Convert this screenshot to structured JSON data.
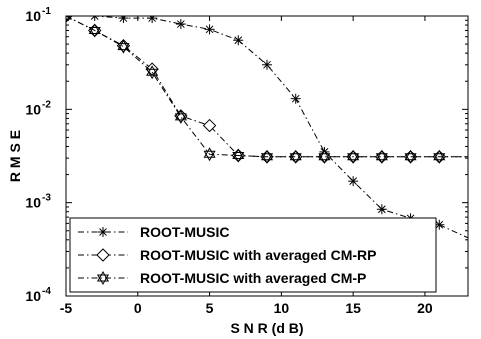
{
  "chart_data": {
    "type": "line",
    "xlabel": "S N R (d B)",
    "ylabel": "R M S E",
    "xlim": [
      -5,
      23
    ],
    "ylim": [
      0.0001,
      0.1
    ],
    "yscale": "log",
    "grid": false,
    "legend_position": "bottom-left",
    "x_ticks": [
      -5,
      0,
      5,
      10,
      15,
      20
    ],
    "x_tick_labels": [
      "-5",
      "0",
      "5",
      "10",
      "15",
      "20"
    ],
    "y_ticks": [
      0.1,
      0.01,
      0.001,
      0.0001
    ],
    "y_tick_labels": [
      {
        "base": "10",
        "exp": "-1"
      },
      {
        "base": "10",
        "exp": "-2"
      },
      {
        "base": "10",
        "exp": "-3"
      },
      {
        "base": "10",
        "exp": "-4"
      }
    ],
    "series": [
      {
        "name": "ROOT-MUSIC",
        "marker": "star",
        "color": "#000000",
        "x": [
          -5,
          -3,
          -1,
          1,
          3,
          5,
          7,
          9,
          11,
          13,
          15,
          17,
          19,
          21,
          23
        ],
        "y": [
          0.1,
          0.1,
          0.095,
          0.095,
          0.082,
          0.072,
          0.055,
          0.03,
          0.013,
          0.0035,
          0.0017,
          0.00085,
          0.00068,
          0.00058,
          0.00042
        ],
        "marker_indices": [
          0,
          1,
          2,
          3,
          4,
          5,
          6,
          7,
          8,
          9,
          10,
          11,
          12,
          13
        ]
      },
      {
        "name": "ROOT-MUSIC with averaged CM-RP",
        "marker": "diamond",
        "color": "#000000",
        "x": [
          -5,
          -3,
          -1,
          1,
          3,
          5,
          7,
          9,
          11,
          13,
          15,
          17,
          19,
          21,
          23
        ],
        "y": [
          0.1,
          0.07,
          0.048,
          0.027,
          0.0085,
          0.0067,
          0.0032,
          0.0031,
          0.0031,
          0.0031,
          0.0031,
          0.0031,
          0.0031,
          0.0031,
          0.0031
        ],
        "marker_indices": [
          0,
          1,
          2,
          3,
          4,
          5,
          6,
          7,
          8,
          9,
          10,
          11,
          12,
          13
        ]
      },
      {
        "name": "ROOT-MUSIC with averaged CM-P",
        "marker": "hexagram",
        "color": "#000000",
        "x": [
          -5,
          -3,
          -1,
          1,
          3,
          5,
          7,
          9,
          11,
          13,
          15,
          17,
          19,
          21,
          23
        ],
        "y": [
          0.1,
          0.07,
          0.047,
          0.025,
          0.0083,
          0.0033,
          0.0032,
          0.0031,
          0.0031,
          0.0031,
          0.0031,
          0.0031,
          0.0031,
          0.0031,
          0.0031
        ],
        "marker_indices": [
          0,
          1,
          2,
          3,
          4,
          5,
          6,
          7,
          8,
          9,
          10,
          11,
          12,
          13
        ]
      }
    ]
  }
}
